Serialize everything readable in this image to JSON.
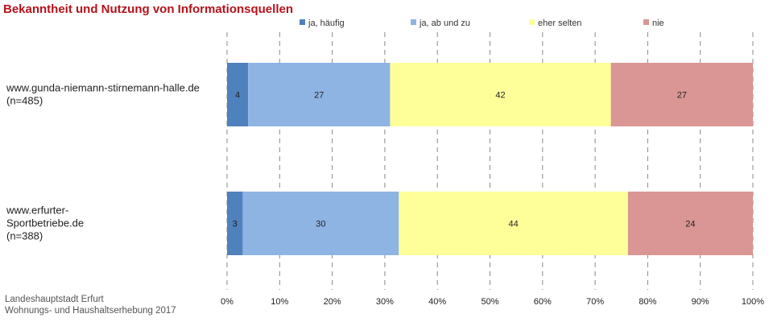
{
  "chart_data": {
    "type": "bar",
    "orientation": "horizontal",
    "stacked": true,
    "title": "Bekanntheit und Nutzung von Informationsquellen",
    "categories": [
      [
        "www.gunda-niemann-stirnemann-halle.de",
        "(n=485)"
      ],
      [
        "www.erfurter-",
        "Sportbetriebe.de",
        "(n=388)"
      ]
    ],
    "series": [
      {
        "name": "ja, häufig",
        "color": "#4f81bd",
        "values": [
          4,
          3
        ]
      },
      {
        "name": "ja, ab und zu",
        "color": "#8eb4e3",
        "values": [
          27,
          30
        ]
      },
      {
        "name": "eher selten",
        "color": "#ffff99",
        "values": [
          42,
          44
        ]
      },
      {
        "name": "nie",
        "color": "#d99694",
        "values": [
          27,
          24
        ]
      }
    ],
    "xlim": [
      0,
      100
    ],
    "xticks": [
      "0%",
      "10%",
      "20%",
      "30%",
      "40%",
      "50%",
      "60%",
      "70%",
      "80%",
      "90%",
      "100%"
    ],
    "grid": true,
    "legend_position": "top"
  },
  "source": {
    "line1": "Landeshauptstadt Erfurt",
    "line2": "Wohnungs- und Haushaltserhebung 2017"
  }
}
